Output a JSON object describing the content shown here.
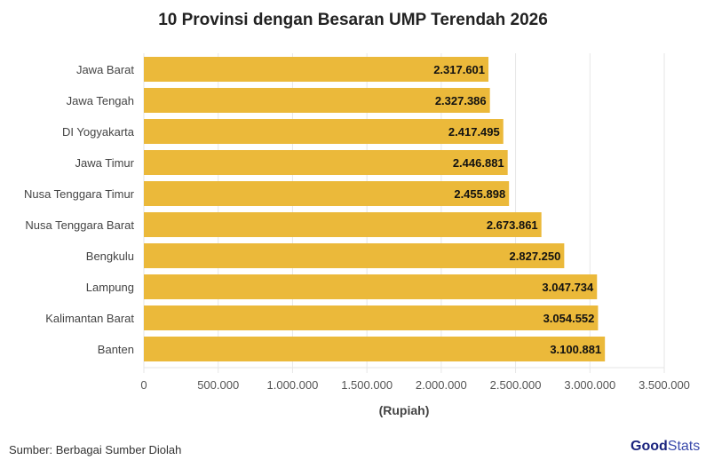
{
  "chart_data": {
    "type": "bar",
    "orientation": "horizontal",
    "title": "10 Provinsi dengan Besaran UMP Terendah 2026",
    "xlabel": "(Rupiah)",
    "ylabel": "",
    "categories": [
      "Jawa Barat",
      "Jawa Tengah",
      "DI Yogyakarta",
      "Jawa Timur",
      "Nusa Tenggara Timur",
      "Nusa Tenggara Barat",
      "Bengkulu",
      "Lampung",
      "Kalimantan Barat",
      "Banten"
    ],
    "values": [
      2317601,
      2327386,
      2417495,
      2446881,
      2455898,
      2673861,
      2827250,
      3047734,
      3054552,
      3100881
    ],
    "value_labels": [
      "2.317.601",
      "2.327.386",
      "2.417.495",
      "2.446.881",
      "2.455.898",
      "2.673.861",
      "2.827.250",
      "3.047.734",
      "3.054.552",
      "3.100.881"
    ],
    "xlim": [
      0,
      3500000
    ],
    "xticks": [
      0,
      500000,
      1000000,
      1500000,
      2000000,
      2500000,
      3000000,
      3500000
    ],
    "xtick_labels": [
      "0",
      "500.000",
      "1.000.000",
      "1.500.000",
      "2.000.000",
      "2.500.000",
      "3.000.000",
      "3.500.000"
    ],
    "grid": true,
    "bar_color": "#ebb93a"
  },
  "footer": {
    "source": "Sumber: Berbagai Sumber Diolah",
    "logo_bold": "Good",
    "logo_light": "Stats"
  }
}
